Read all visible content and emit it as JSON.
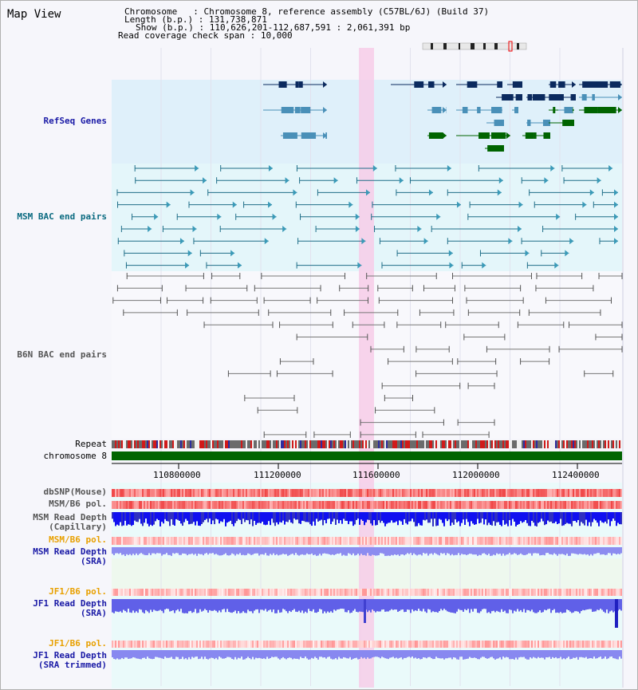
{
  "map_title": "Map View",
  "info": {
    "chromosome_label": "Chromosome",
    "chromosome_value": "Chromosome 8, reference assembly (C57BL/6J) (Build 37)",
    "length_label": "Length (b.p.)",
    "length_value": "131,738,871",
    "show_label": "Show (b.p.)",
    "show_value": "110,626,201-112,687,591 : 2,061,391 bp",
    "span_label": "Read coverage check span",
    "span_value": "10,000"
  },
  "tracks": {
    "refseq": "RefSeq Genes",
    "msm_bac": "MSM BAC end pairs",
    "b6n_bac": "B6N BAC end pairs",
    "repeat": "Repeat",
    "chromosome": "chromosome 8",
    "dbsnp": "dbSNP(Mouse)",
    "msm_b6_pol_1": "MSM/B6 pol.",
    "msm_depth_cap": "MSM Read Depth\n(Capillary)",
    "msm_b6_pol_2": "MSM/B6 pol.",
    "msm_depth_sra": "MSM Read Depth\n(SRA)",
    "jf1_b6_pol_1": "JF1/B6 pol.",
    "jf1_depth_sra": "JF1 Read Depth\n(SRA)",
    "jf1_b6_pol_2": "JF1/B6 pol.",
    "jf1_depth_trim": "JF1 Read Depth\n(SRA trimmed)"
  },
  "ruler": [
    "110800000",
    "111200000",
    "111600000",
    "112000000",
    "112400000"
  ],
  "colors": {
    "refseq_bg": "#dff0fa",
    "msm_bg": "#e4f6fa",
    "highlight": "#f7cde8",
    "gene_dark": "#0b2a5e",
    "gene_mid": "#4a90b8",
    "gene_green": "#006400",
    "chromosome_bar": "#006400"
  }
}
